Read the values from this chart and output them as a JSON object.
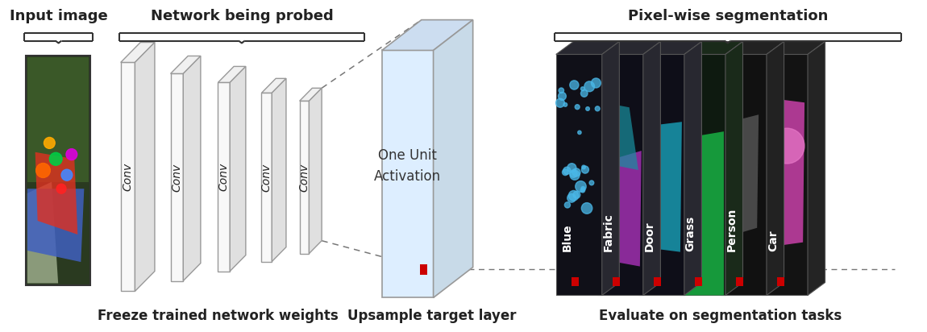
{
  "title_input": "Input image",
  "title_network": "Network being probed",
  "title_segmentation": "Pixel-wise segmentation",
  "label_freeze": "Freeze trained network weights",
  "label_upsample": "Upsample target layer",
  "label_evaluate": "Evaluate on segmentation tasks",
  "label_activation": "One Unit\nActivation",
  "conv_label": "Conv",
  "seg_labels": [
    "Blue",
    "Fabric",
    "Door",
    "Grass",
    "Person",
    "Car"
  ],
  "seg_content_colors": [
    "#4ab8e8",
    "#b040c0",
    "#20a0b0",
    "#20b050",
    "#a0a0a0",
    "#c040a0"
  ],
  "background_color": "#ffffff",
  "text_color": "#222222",
  "brace_color": "#333333"
}
